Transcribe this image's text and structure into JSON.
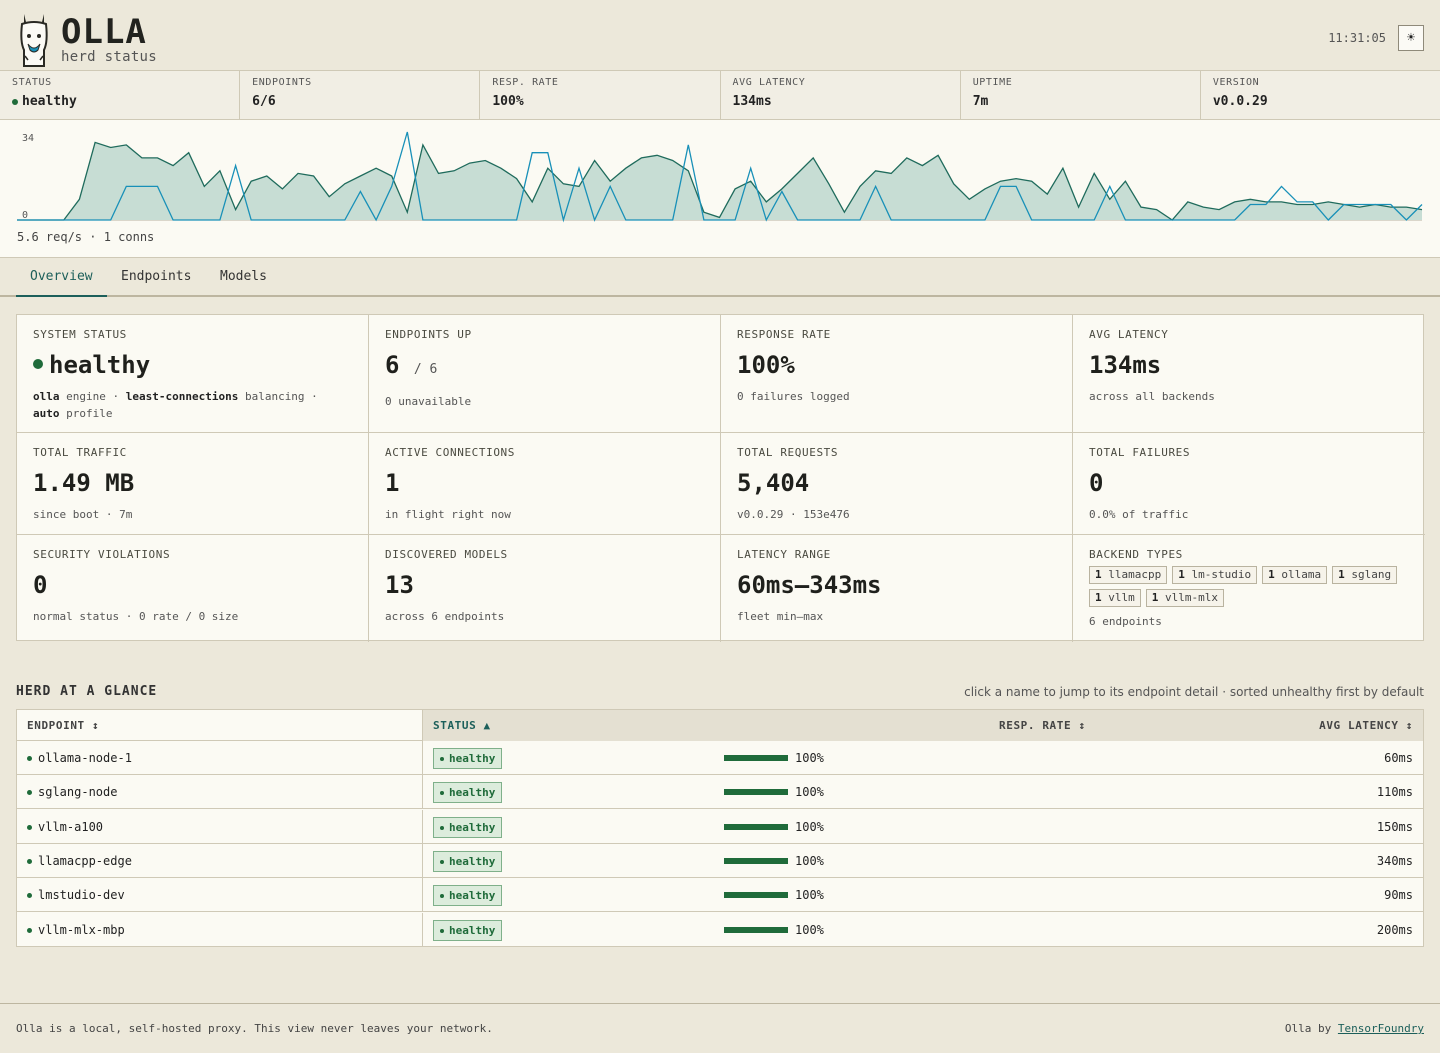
{
  "header": {
    "brand": "OLLA",
    "subtitle": "herd status",
    "clock": "11:31:05",
    "theme_icon": "☀"
  },
  "strip": [
    {
      "label": "STATUS",
      "value": "healthy",
      "dot": true
    },
    {
      "label": "ENDPOINTS",
      "value": "6/6"
    },
    {
      "label": "RESP. RATE",
      "value": "100%"
    },
    {
      "label": "AVG LATENCY",
      "value": "134ms"
    },
    {
      "label": "UPTIME",
      "value": "7m"
    },
    {
      "label": "VERSION",
      "value": "v0.0.29"
    }
  ],
  "sparkline": {
    "y_max_label": "34",
    "y_min_label": "0",
    "footer": "5.6 req/s · 1 conns",
    "colors": {
      "requests": "#1f6b5c",
      "fill": "#c7ddd4",
      "connections": "#1890b8"
    },
    "requests": [
      0,
      0,
      0,
      0,
      8,
      30,
      28,
      29,
      24,
      24,
      21,
      26,
      13,
      19,
      4,
      15,
      17,
      12,
      18,
      17,
      9,
      14,
      17,
      20,
      17,
      3,
      29,
      18,
      19,
      22,
      23,
      20,
      16,
      7,
      20,
      14,
      13,
      23,
      15,
      20,
      24,
      25,
      23,
      19,
      3,
      1,
      12,
      15,
      7,
      12,
      18,
      24,
      14,
      3,
      13,
      19,
      18,
      24,
      21,
      25,
      14,
      8,
      12,
      15,
      16,
      15,
      10,
      20,
      5,
      18,
      8,
      15,
      5,
      4,
      0,
      7,
      5,
      4,
      7,
      8,
      7,
      7,
      6,
      6,
      7,
      6,
      5,
      6,
      5,
      5,
      4
    ],
    "connections": [
      0,
      0,
      0,
      0,
      0,
      0,
      0,
      13,
      13,
      13,
      0,
      0,
      0,
      0,
      21,
      0,
      0,
      0,
      0,
      0,
      0,
      0,
      11,
      0,
      13,
      34,
      0,
      0,
      0,
      0,
      0,
      0,
      0,
      26,
      26,
      0,
      20,
      0,
      13,
      0,
      0,
      0,
      0,
      29,
      0,
      0,
      0,
      20,
      0,
      11,
      0,
      0,
      0,
      0,
      0,
      13,
      0,
      0,
      0,
      0,
      0,
      0,
      0,
      13,
      13,
      0,
      0,
      0,
      0,
      0,
      13,
      0,
      0,
      0,
      0,
      0,
      0,
      0,
      0,
      6,
      6,
      13,
      7,
      7,
      0,
      6,
      6,
      6,
      6,
      0,
      6
    ]
  },
  "tabs": [
    {
      "label": "Overview",
      "active": true
    },
    {
      "label": "Endpoints"
    },
    {
      "label": "Models"
    }
  ],
  "metrics": {
    "system_status": {
      "label": "SYSTEM STATUS",
      "value": "healthy",
      "sub_engine": "olla",
      "sub_engine_txt": "engine ·",
      "sub_balancer": "least-connections",
      "sub_balancer_txt": "balancing ·",
      "sub_profile": "auto",
      "sub_profile_txt": "profile"
    },
    "endpoints_up": {
      "label": "ENDPOINTS UP",
      "value": "6",
      "total": "/ 6",
      "sub": "0 unavailable"
    },
    "response_rate": {
      "label": "RESPONSE RATE",
      "value": "100%",
      "sub": "0 failures logged"
    },
    "avg_latency": {
      "label": "AVG LATENCY",
      "value": "134ms",
      "sub": "across all backends"
    },
    "total_traffic": {
      "label": "TOTAL TRAFFIC",
      "value": "1.49 MB",
      "sub": "since boot · 7m"
    },
    "active_connections": {
      "label": "ACTIVE CONNECTIONS",
      "value": "1",
      "sub": "in flight right now"
    },
    "total_requests": {
      "label": "TOTAL REQUESTS",
      "value": "5,404",
      "sub": "v0.0.29 · 153e476"
    },
    "total_failures": {
      "label": "TOTAL FAILURES",
      "value": "0",
      "sub": "0.0% of traffic"
    },
    "security_violations": {
      "label": "SECURITY VIOLATIONS",
      "value": "0",
      "sub": "normal status · 0 rate / 0 size"
    },
    "discovered_models": {
      "label": "DISCOVERED MODELS",
      "value": "13",
      "sub": "across 6 endpoints"
    },
    "latency_range": {
      "label": "LATENCY RANGE",
      "value": "60ms–343ms",
      "sub": "fleet min–max"
    },
    "backend_types": {
      "label": "BACKEND TYPES",
      "chips": [
        {
          "count": "1",
          "name": "llamacpp"
        },
        {
          "count": "1",
          "name": "lm-studio"
        },
        {
          "count": "1",
          "name": "ollama"
        },
        {
          "count": "1",
          "name": "sglang"
        },
        {
          "count": "1",
          "name": "vllm"
        },
        {
          "count": "1",
          "name": "vllm-mlx"
        }
      ],
      "sub": "6 endpoints"
    }
  },
  "herd": {
    "title": "HERD AT A GLANCE",
    "hint": "click a name to jump to its endpoint detail · sorted unhealthy first by default",
    "columns": {
      "endpoint": "ENDPOINT ↕",
      "status": "STATUS ▲",
      "rate": "RESP. RATE ↕",
      "latency": "AVG LATENCY ↕"
    },
    "rows": [
      {
        "name": "ollama-node-1",
        "status": "healthy",
        "rate": "100%",
        "rate_fraction": 1.0,
        "latency": "60ms"
      },
      {
        "name": "sglang-node",
        "status": "healthy",
        "rate": "100%",
        "rate_fraction": 1.0,
        "latency": "110ms"
      },
      {
        "name": "vllm-a100",
        "status": "healthy",
        "rate": "100%",
        "rate_fraction": 1.0,
        "latency": "150ms"
      },
      {
        "name": "llamacpp-edge",
        "status": "healthy",
        "rate": "100%",
        "rate_fraction": 1.0,
        "latency": "340ms"
      },
      {
        "name": "lmstudio-dev",
        "status": "healthy",
        "rate": "100%",
        "rate_fraction": 1.0,
        "latency": "90ms"
      },
      {
        "name": "vllm-mlx-mbp",
        "status": "healthy",
        "rate": "100%",
        "rate_fraction": 1.0,
        "latency": "200ms"
      }
    ]
  },
  "footer": {
    "left": "Olla is a local, self-hosted proxy. This view never leaves your network.",
    "right_prefix": "Olla by",
    "right_link": "TensorFoundry"
  }
}
